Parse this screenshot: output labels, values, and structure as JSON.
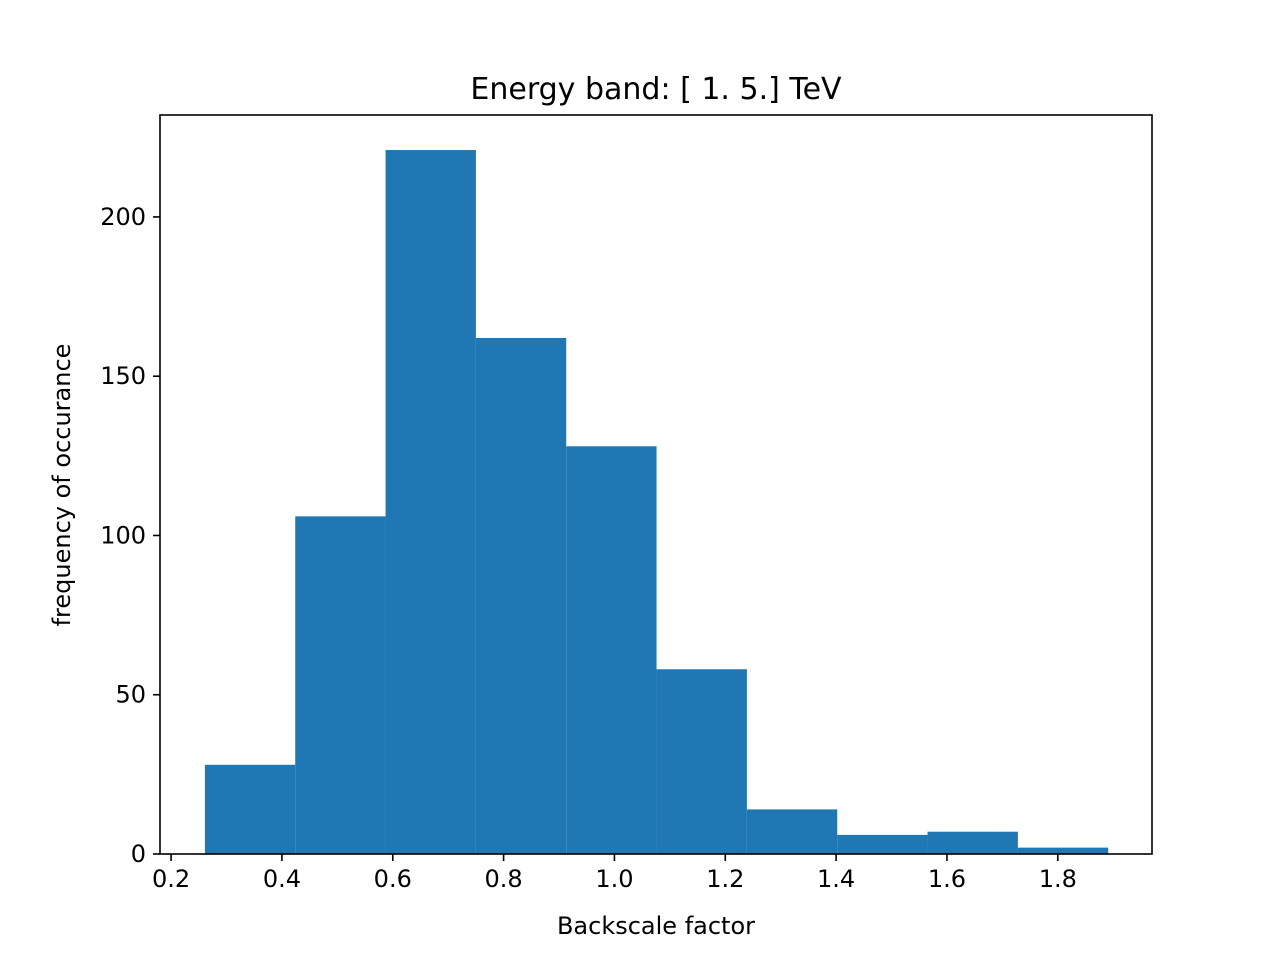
{
  "chart_data": {
    "type": "bar",
    "title": "Energy band: [ 1.  5.] TeV",
    "xlabel": "Backscale factor",
    "ylabel": "frequency of occurance",
    "xlim": [
      0.18,
      1.97
    ],
    "ylim": [
      0,
      232
    ],
    "xticks": [
      0.2,
      0.4,
      0.6,
      0.8,
      1.0,
      1.2,
      1.4,
      1.6,
      1.8
    ],
    "xtick_labels": [
      "0.2",
      "0.4",
      "0.6",
      "0.8",
      "1.0",
      "1.2",
      "1.4",
      "1.6",
      "1.8"
    ],
    "yticks": [
      0,
      50,
      100,
      150,
      200
    ],
    "ytick_labels": [
      "0",
      "50",
      "100",
      "150",
      "200"
    ],
    "bin_edges": [
      0.261,
      0.424,
      0.587,
      0.75,
      0.913,
      1.076,
      1.239,
      1.402,
      1.565,
      1.728,
      1.891
    ],
    "values": [
      28,
      106,
      221,
      162,
      128,
      58,
      14,
      6,
      7,
      2
    ],
    "bar_color": "#1f77b4",
    "grid": false,
    "legend": "none"
  }
}
